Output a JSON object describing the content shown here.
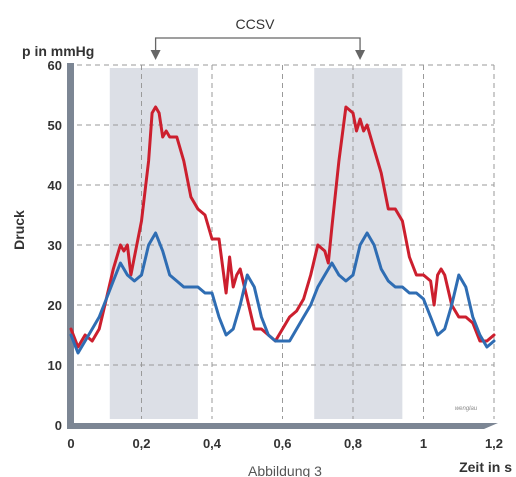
{
  "chart_data": {
    "type": "line",
    "ylabel_unit": "p in mmHg",
    "ylabel": "Druck",
    "xlabel": "Zeit in s",
    "xlim": [
      0,
      1.2
    ],
    "ylim": [
      0,
      60
    ],
    "x_ticks": [
      "0",
      "0,2",
      "0,4",
      "0,6",
      "0,8",
      "1",
      "1,2"
    ],
    "y_ticks": [
      "0",
      "10",
      "20",
      "30",
      "40",
      "50",
      "60"
    ],
    "grid": true,
    "annotation": "CCSV",
    "annotation_arrows_x": [
      0.24,
      0.82
    ],
    "shaded_intervals": [
      [
        0.11,
        0.36
      ],
      [
        0.69,
        0.94
      ]
    ],
    "watermark": "wenglau",
    "caption": "Abbildung 3",
    "colors": {
      "red": "#cc1f2e",
      "blue": "#2f6db3",
      "shade": "#dcdfe6",
      "grid": "#9a9a9a",
      "axis": "#7c8694"
    },
    "series": [
      {
        "color": "red",
        "x": [
          0.0,
          0.02,
          0.04,
          0.06,
          0.08,
          0.1,
          0.12,
          0.14,
          0.15,
          0.16,
          0.17,
          0.18,
          0.2,
          0.22,
          0.23,
          0.24,
          0.25,
          0.26,
          0.27,
          0.28,
          0.3,
          0.32,
          0.34,
          0.36,
          0.38,
          0.4,
          0.42,
          0.44,
          0.45,
          0.46,
          0.47,
          0.48,
          0.5,
          0.52,
          0.54,
          0.56,
          0.58,
          0.6,
          0.62,
          0.64,
          0.66,
          0.68,
          0.7,
          0.72,
          0.73,
          0.74,
          0.76,
          0.78,
          0.8,
          0.81,
          0.82,
          0.83,
          0.84,
          0.86,
          0.88,
          0.9,
          0.92,
          0.94,
          0.96,
          0.98,
          1.0,
          1.02,
          1.03,
          1.04,
          1.05,
          1.06,
          1.08,
          1.1,
          1.12,
          1.14,
          1.16,
          1.18,
          1.2
        ],
        "y": [
          16,
          13,
          15,
          14,
          16,
          21,
          26,
          30,
          29,
          30,
          25,
          28,
          34,
          44,
          52,
          53,
          52,
          48,
          49,
          48,
          48,
          44,
          38,
          36,
          35,
          31,
          31,
          22,
          28,
          23,
          25,
          26,
          21,
          16,
          16,
          15,
          14,
          16,
          18,
          19,
          21,
          25,
          30,
          29,
          27,
          33,
          44,
          53,
          52,
          49,
          51,
          49,
          50,
          46,
          42,
          36,
          36,
          34,
          28,
          25,
          25,
          24,
          20,
          25,
          26,
          25,
          20,
          18,
          18,
          17,
          14,
          14,
          15
        ]
      },
      {
        "color": "blue",
        "x": [
          0.0,
          0.02,
          0.04,
          0.06,
          0.08,
          0.1,
          0.12,
          0.14,
          0.16,
          0.18,
          0.2,
          0.22,
          0.24,
          0.26,
          0.28,
          0.3,
          0.32,
          0.34,
          0.36,
          0.38,
          0.4,
          0.42,
          0.44,
          0.46,
          0.48,
          0.5,
          0.52,
          0.54,
          0.56,
          0.58,
          0.6,
          0.62,
          0.64,
          0.66,
          0.68,
          0.7,
          0.72,
          0.74,
          0.76,
          0.78,
          0.8,
          0.82,
          0.84,
          0.86,
          0.88,
          0.9,
          0.92,
          0.94,
          0.96,
          0.98,
          1.0,
          1.02,
          1.04,
          1.06,
          1.08,
          1.1,
          1.12,
          1.14,
          1.16,
          1.18,
          1.2
        ],
        "y": [
          15,
          12,
          14,
          16,
          18,
          21,
          24,
          27,
          25,
          24,
          25,
          30,
          32,
          29,
          25,
          24,
          23,
          23,
          23,
          22,
          22,
          18,
          15,
          16,
          20,
          25,
          23,
          18,
          15,
          14,
          14,
          14,
          16,
          18,
          20,
          23,
          25,
          27,
          25,
          24,
          25,
          30,
          32,
          30,
          26,
          24,
          23,
          23,
          22,
          22,
          21,
          18,
          15,
          16,
          20,
          25,
          23,
          18,
          15,
          13,
          14
        ]
      }
    ]
  }
}
